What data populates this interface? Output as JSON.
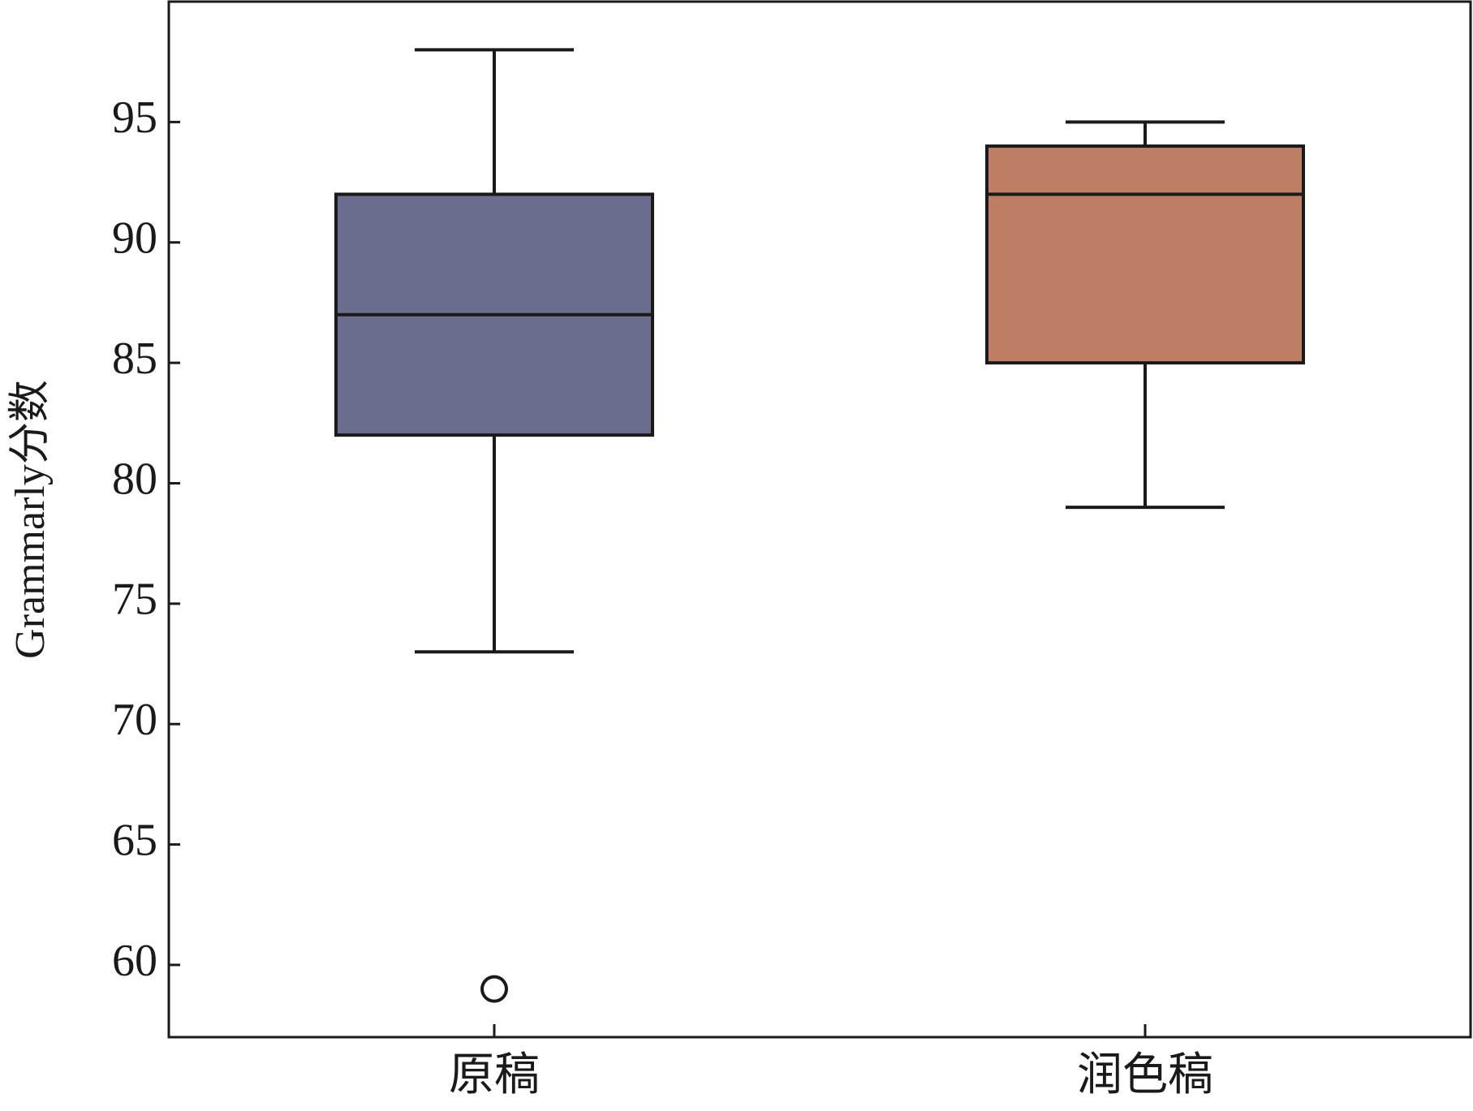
{
  "chart_data": {
    "type": "box",
    "y_label": "Grammarly分数",
    "categories": [
      "原稿",
      "润色稿"
    ],
    "series": [
      {
        "color": "#6a6e8c",
        "whislo": 73,
        "q1": 82,
        "med": 87,
        "q3": 92,
        "whishi": 98,
        "fliers": [
          59
        ]
      },
      {
        "color": "#bf7e63",
        "whislo": 79,
        "q1": 85,
        "med": 92,
        "q3": 94,
        "whishi": 95,
        "fliers": []
      }
    ],
    "ylim": [
      57,
      100
    ],
    "yticks": [
      60,
      65,
      70,
      75,
      80,
      85,
      90,
      95
    ],
    "grid": false
  }
}
